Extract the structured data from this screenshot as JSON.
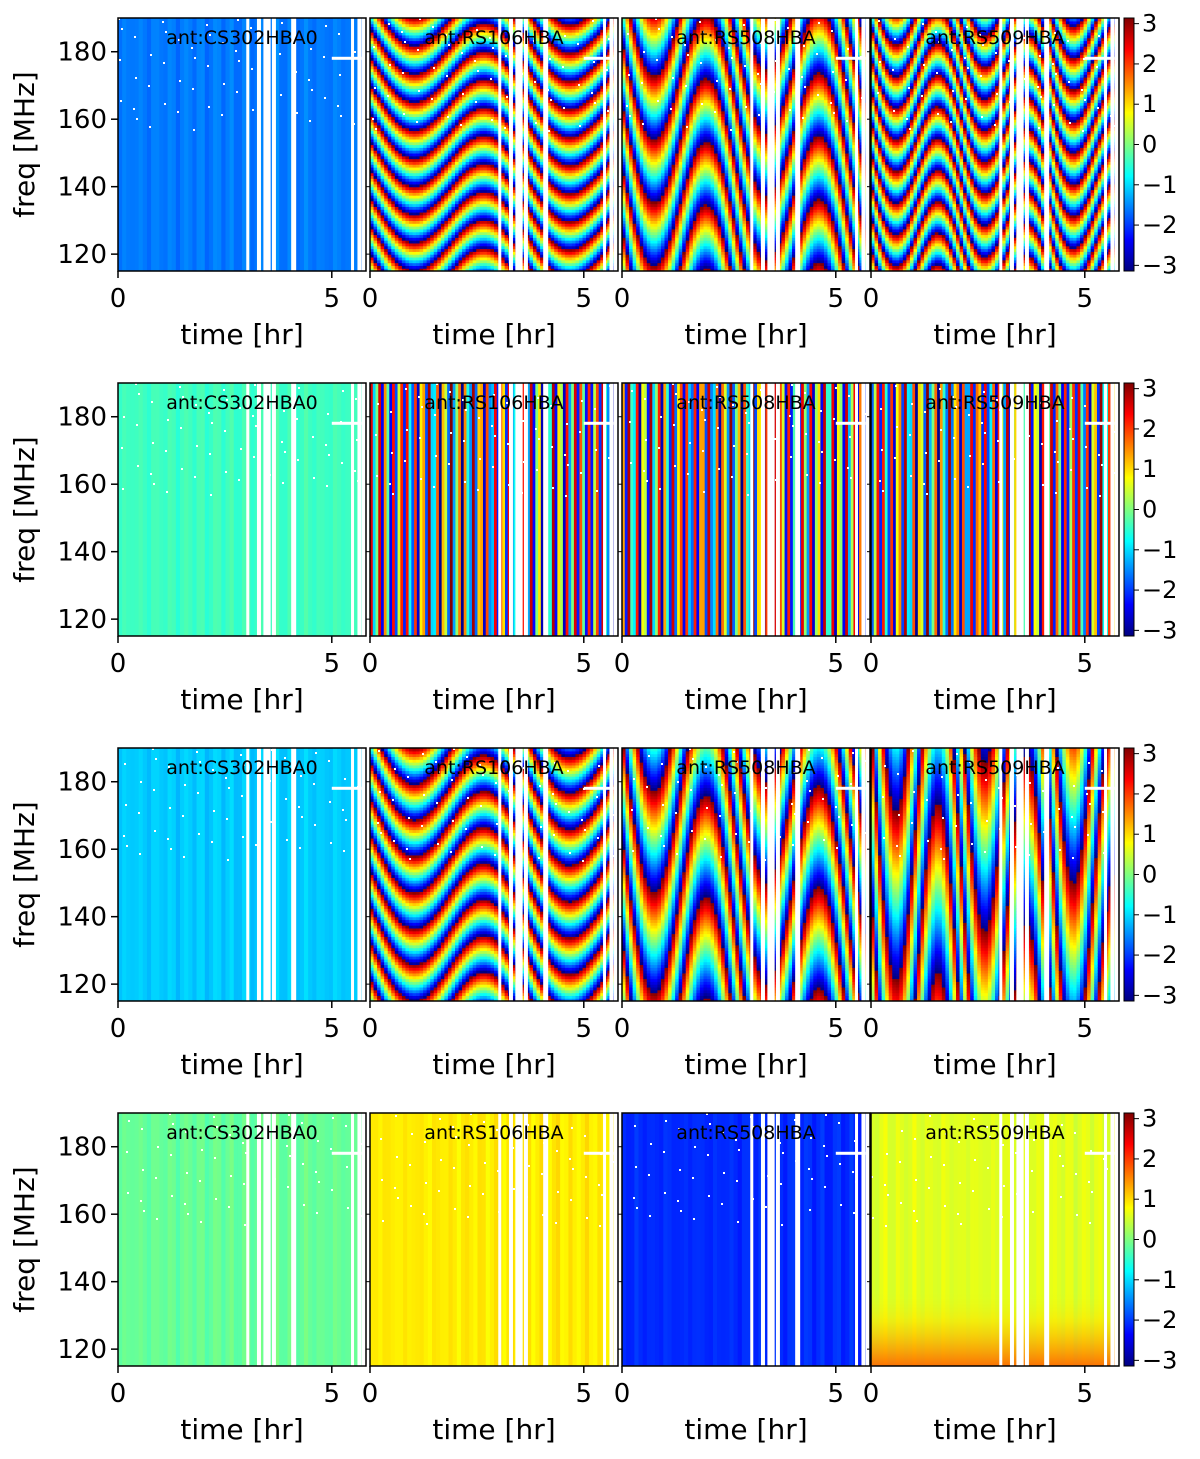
{
  "colormap": "jet",
  "colors": {
    "jet_stops": [
      "#00007f",
      "#0000ff",
      "#007fff",
      "#00ffff",
      "#7fff7f",
      "#ffff00",
      "#ff7f00",
      "#ff0000",
      "#7f0000"
    ],
    "frame": "#000000",
    "flagged": "#ffffff"
  },
  "chart_data": [
    {
      "type": "heatmap",
      "row": 1,
      "antennas": [
        "ant:CS302HBA0",
        "ant:RS106HBA",
        "ant:RS508HBA",
        "ant:RS509HBA"
      ],
      "pattern": [
        "flat",
        "fringe",
        "fringe",
        "fringe"
      ],
      "base_value": [
        -1.6,
        0,
        0,
        0
      ],
      "fringe_cycles": [
        0,
        9,
        4,
        8
      ],
      "xlabel": "time [hr]",
      "ylabel": "freq [MHz]",
      "xlim": [
        0,
        5.8
      ],
      "ylim": [
        115,
        190
      ],
      "xticks": [
        0,
        5
      ],
      "yticks": [
        120,
        140,
        160,
        180
      ],
      "colorbar": {
        "vmin": -3.14,
        "vmax": 3.14,
        "ticks": [
          3,
          2,
          1,
          0,
          -1,
          -2,
          -3
        ],
        "tick_labels": [
          "3",
          "2",
          "1",
          "0",
          "−1",
          "−2",
          "−3"
        ]
      }
    },
    {
      "type": "heatmap",
      "row": 2,
      "antennas": [
        "ant:CS302HBA0",
        "ant:RS106HBA",
        "ant:RS508HBA",
        "ant:RS509HBA"
      ],
      "pattern": [
        "flat",
        "stripes",
        "stripes",
        "stripes"
      ],
      "base_value": [
        -0.4,
        0,
        0,
        0
      ],
      "fringe_cycles": [
        0,
        0,
        0,
        0
      ],
      "xlabel": "time [hr]",
      "ylabel": "freq [MHz]",
      "xlim": [
        0,
        5.8
      ],
      "ylim": [
        115,
        190
      ],
      "xticks": [
        0,
        5
      ],
      "yticks": [
        120,
        140,
        160,
        180
      ],
      "colorbar": {
        "vmin": -3.14,
        "vmax": 3.14,
        "ticks": [
          3,
          2,
          1,
          0,
          -1,
          -2,
          -3
        ],
        "tick_labels": [
          "3",
          "2",
          "1",
          "0",
          "−1",
          "−2",
          "−3"
        ]
      }
    },
    {
      "type": "heatmap",
      "row": 3,
      "antennas": [
        "ant:CS302HBA0",
        "ant:RS106HBA",
        "ant:RS508HBA",
        "ant:RS509HBA"
      ],
      "pattern": [
        "flat",
        "fringe",
        "fringe",
        "fringe"
      ],
      "base_value": [
        -1.1,
        0,
        0,
        0
      ],
      "fringe_cycles": [
        0,
        7,
        2.5,
        1.5
      ],
      "xlabel": "time [hr]",
      "ylabel": "freq [MHz]",
      "xlim": [
        0,
        5.8
      ],
      "ylim": [
        115,
        190
      ],
      "xticks": [
        0,
        5
      ],
      "yticks": [
        120,
        140,
        160,
        180
      ],
      "colorbar": {
        "vmin": -3.14,
        "vmax": 3.14,
        "ticks": [
          3,
          2,
          1,
          0,
          -1,
          -2,
          -3
        ],
        "tick_labels": [
          "3",
          "2",
          "1",
          "0",
          "−1",
          "−2",
          "−3"
        ]
      }
    },
    {
      "type": "heatmap",
      "row": 4,
      "antennas": [
        "ant:CS302HBA0",
        "ant:RS106HBA",
        "ant:RS508HBA",
        "ant:RS509HBA"
      ],
      "pattern": [
        "flat",
        "flat",
        "flat",
        "flat"
      ],
      "base_value": [
        -0.15,
        0.9,
        -2.1,
        0.6
      ],
      "fringe_cycles": [
        0,
        0,
        0,
        0
      ],
      "xlabel": "time [hr]",
      "ylabel": "freq [MHz]",
      "xlim": [
        0,
        5.8
      ],
      "ylim": [
        115,
        190
      ],
      "xticks": [
        0,
        5
      ],
      "yticks": [
        120,
        140,
        160,
        180
      ],
      "colorbar": {
        "vmin": -3.14,
        "vmax": 3.14,
        "ticks": [
          3,
          2,
          1,
          0,
          -1,
          -2,
          -3
        ],
        "tick_labels": [
          "3",
          "2",
          "1",
          "0",
          "−1",
          "−2",
          "−3"
        ]
      }
    }
  ],
  "flagged_times_hr": [
    3.0,
    3.25,
    3.4,
    3.5,
    3.6,
    4.05,
    5.45,
    5.6,
    5.7
  ]
}
